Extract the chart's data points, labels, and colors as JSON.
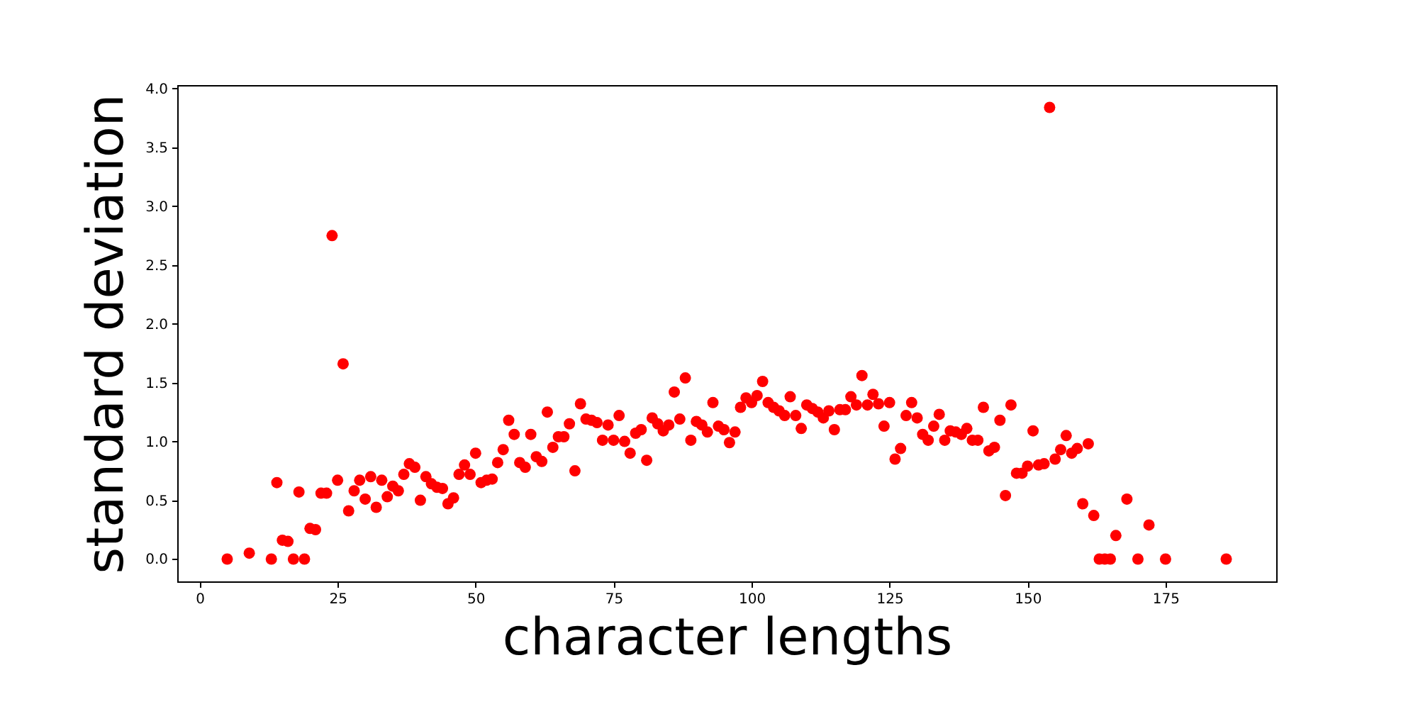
{
  "chart_data": {
    "type": "scatter",
    "xlabel": "character lengths",
    "ylabel": "standard deviation",
    "marker": "circle",
    "xlim": [
      -4.05,
      195.05
    ],
    "ylim": [
      -0.19,
      4.03
    ],
    "xticks": [
      0,
      25,
      50,
      75,
      100,
      125,
      150,
      175
    ],
    "yticks": [
      {
        "value": 0,
        "label": "0.0"
      },
      {
        "value": 0.5,
        "label": "0.5"
      },
      {
        "value": 1,
        "label": "1.0"
      },
      {
        "value": 1.5,
        "label": "1.5"
      },
      {
        "value": 2,
        "label": "2.0"
      },
      {
        "value": 2.5,
        "label": "2.5"
      },
      {
        "value": 3,
        "label": "3.0"
      },
      {
        "value": 3.5,
        "label": "3.5"
      },
      {
        "value": 4,
        "label": "4.0"
      }
    ],
    "x": [
      5,
      9,
      13,
      14,
      15,
      16,
      17,
      18,
      19,
      20,
      21,
      22,
      23,
      24,
      25,
      26,
      27,
      28,
      29,
      30,
      31,
      32,
      33,
      34,
      35,
      36,
      37,
      38,
      39,
      40,
      41,
      42,
      43,
      44,
      45,
      46,
      47,
      48,
      49,
      50,
      51,
      52,
      53,
      54,
      55,
      56,
      57,
      58,
      59,
      60,
      61,
      62,
      63,
      64,
      65,
      66,
      67,
      68,
      69,
      70,
      71,
      72,
      73,
      74,
      75,
      76,
      77,
      78,
      79,
      80,
      81,
      82,
      83,
      84,
      85,
      86,
      87,
      88,
      89,
      90,
      91,
      92,
      93,
      94,
      95,
      96,
      97,
      98,
      99,
      100,
      101,
      102,
      103,
      104,
      105,
      106,
      107,
      108,
      109,
      110,
      111,
      112,
      113,
      114,
      115,
      116,
      117,
      118,
      119,
      120,
      121,
      122,
      123,
      124,
      125,
      126,
      127,
      128,
      129,
      130,
      131,
      132,
      133,
      134,
      135,
      136,
      137,
      138,
      139,
      140,
      141,
      142,
      143,
      144,
      145,
      146,
      147,
      148,
      149,
      150,
      151,
      152,
      153,
      154,
      155,
      156,
      157,
      158,
      159,
      160,
      161,
      162,
      163,
      164,
      165,
      166,
      168,
      170,
      172,
      175,
      186
    ],
    "series": [
      {
        "color": "#ff0000",
        "values": [
          0,
          0.05,
          0,
          0.65,
          0.16,
          0.15,
          0,
          0.57,
          0,
          0.26,
          0.25,
          0.56,
          0.56,
          2.75,
          0.67,
          1.66,
          0.41,
          0.58,
          0.67,
          0.51,
          0.7,
          0.44,
          0.67,
          0.53,
          0.62,
          0.58,
          0.72,
          0.81,
          0.78,
          0.5,
          0.7,
          0.64,
          0.61,
          0.6,
          0.47,
          0.52,
          0.72,
          0.8,
          0.72,
          0.9,
          0.65,
          0.67,
          0.68,
          0.82,
          0.93,
          1.18,
          1.06,
          0.82,
          0.78,
          1.06,
          0.87,
          0.83,
          1.25,
          0.95,
          1.04,
          1.04,
          1.15,
          0.75,
          1.32,
          1.19,
          1.18,
          1.16,
          1.01,
          1.14,
          1.01,
          1.22,
          1.0,
          0.9,
          1.07,
          1.1,
          0.84,
          1.2,
          1.15,
          1.09,
          1.14,
          1.42,
          1.19,
          1.54,
          1.01,
          1.17,
          1.14,
          1.08,
          1.33,
          1.13,
          1.1,
          0.99,
          1.08,
          1.29,
          1.37,
          1.33,
          1.39,
          1.51,
          1.33,
          1.29,
          1.26,
          1.22,
          1.38,
          1.22,
          1.11,
          1.31,
          1.28,
          1.25,
          1.2,
          1.26,
          1.1,
          1.27,
          1.27,
          1.38,
          1.31,
          1.56,
          1.31,
          1.4,
          1.32,
          1.13,
          1.33,
          0.85,
          0.94,
          1.22,
          1.33,
          1.2,
          1.06,
          1.01,
          1.13,
          1.23,
          1.01,
          1.09,
          1.08,
          1.06,
          1.11,
          1.01,
          1.01,
          1.29,
          0.92,
          0.95,
          1.18,
          0.54,
          1.31,
          0.73,
          0.73,
          0.79,
          1.09,
          0.8,
          0.81,
          3.84,
          0.85,
          0.93,
          1.05,
          0.9,
          0.94,
          0.47,
          0.98,
          0.37,
          0,
          0,
          0,
          0.2,
          0.51,
          0,
          0.29,
          0,
          0
        ]
      }
    ]
  }
}
